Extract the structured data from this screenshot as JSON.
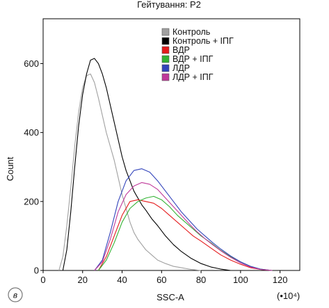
{
  "chart_data": {
    "type": "line",
    "title": "Гейтування: P2",
    "xlabel": "SSC-A",
    "ylabel": "Count",
    "x_multiplier": "(•10⁴)",
    "panel_label": "в",
    "xlim": [
      0,
      130
    ],
    "ylim": [
      0,
      730
    ],
    "x_ticks": [
      0,
      20,
      40,
      60,
      80,
      100,
      120
    ],
    "y_ticks": [
      0,
      200,
      400,
      600
    ],
    "legend_position": "top-right",
    "series": [
      {
        "name": "Контроль",
        "color": "#a0a0a0",
        "x": [
          8,
          10,
          12,
          14,
          16,
          18,
          20,
          22,
          24,
          26,
          28,
          30,
          32,
          34,
          36,
          38,
          40,
          42,
          44,
          46,
          48,
          50,
          52,
          55,
          58,
          62,
          66,
          70,
          75,
          80
        ],
        "y": [
          0,
          40,
          130,
          240,
          360,
          460,
          530,
          565,
          570,
          545,
          500,
          450,
          400,
          360,
          320,
          270,
          220,
          180,
          140,
          110,
          90,
          75,
          60,
          45,
          30,
          20,
          12,
          8,
          3,
          0
        ]
      },
      {
        "name": "Контроль + ІПГ",
        "color": "#000000",
        "x": [
          10,
          12,
          14,
          16,
          18,
          20,
          22,
          24,
          26,
          28,
          30,
          32,
          34,
          36,
          38,
          40,
          42,
          44,
          46,
          48,
          50,
          52,
          55,
          58,
          62,
          66,
          70,
          75,
          80,
          85,
          90,
          95
        ],
        "y": [
          0,
          60,
          170,
          300,
          420,
          510,
          570,
          610,
          615,
          600,
          570,
          530,
          480,
          430,
          380,
          330,
          290,
          260,
          230,
          210,
          190,
          175,
          150,
          130,
          100,
          75,
          55,
          35,
          20,
          10,
          4,
          0
        ]
      },
      {
        "name": "ВДР",
        "color": "#e41a1c",
        "x": [
          28,
          32,
          36,
          40,
          44,
          48,
          52,
          56,
          60,
          64,
          68,
          72,
          76,
          80,
          85,
          90,
          95,
          100,
          105,
          110,
          116
        ],
        "y": [
          0,
          40,
          100,
          160,
          200,
          205,
          200,
          195,
          180,
          160,
          140,
          120,
          100,
          85,
          65,
          45,
          30,
          18,
          8,
          3,
          0
        ]
      },
      {
        "name": "ВДР + ІПГ",
        "color": "#33b233",
        "x": [
          28,
          32,
          36,
          40,
          44,
          48,
          52,
          56,
          60,
          64,
          68,
          72,
          76,
          80,
          85,
          90,
          95,
          100,
          105,
          110,
          116
        ],
        "y": [
          0,
          30,
          80,
          140,
          180,
          200,
          210,
          215,
          205,
          185,
          160,
          140,
          120,
          100,
          80,
          58,
          40,
          25,
          12,
          4,
          0
        ]
      },
      {
        "name": "ЛДР",
        "color": "#3344bb",
        "x": [
          26,
          30,
          34,
          38,
          42,
          46,
          50,
          54,
          58,
          62,
          66,
          70,
          74,
          78,
          82,
          86,
          90,
          95,
          100,
          105,
          110,
          116
        ],
        "y": [
          0,
          30,
          110,
          200,
          260,
          290,
          295,
          285,
          260,
          230,
          200,
          170,
          145,
          120,
          100,
          80,
          62,
          42,
          25,
          12,
          4,
          0
        ]
      },
      {
        "name": "ЛДР + ІПГ",
        "color": "#c0399a",
        "x": [
          26,
          30,
          34,
          38,
          42,
          46,
          50,
          54,
          58,
          62,
          66,
          70,
          74,
          78,
          82,
          86,
          90,
          95,
          100,
          105,
          110,
          116
        ],
        "y": [
          0,
          25,
          90,
          170,
          220,
          245,
          255,
          250,
          235,
          210,
          185,
          160,
          135,
          112,
          92,
          74,
          57,
          38,
          22,
          10,
          3,
          0
        ]
      }
    ]
  }
}
